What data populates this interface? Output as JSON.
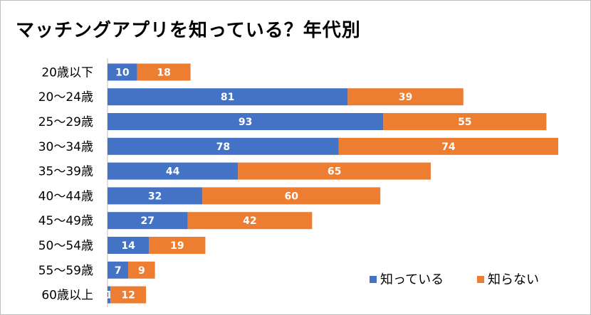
{
  "chart_data": {
    "type": "bar",
    "orientation": "horizontal",
    "stacked": true,
    "title": "マッチングアプリを知っている？年代別",
    "categories": [
      "20歳以下",
      "20～24歳",
      "25～29歳",
      "30～34歳",
      "35～39歳",
      "40～44歳",
      "45～49歳",
      "50～54歳",
      "55～59歳",
      "60歳以上"
    ],
    "series": [
      {
        "name": "知っている",
        "color": "#4472c4",
        "values": [
          10,
          81,
          93,
          78,
          44,
          32,
          27,
          14,
          7,
          1
        ]
      },
      {
        "name": "知らない",
        "color": "#ed7d31",
        "values": [
          18,
          39,
          55,
          74,
          65,
          60,
          42,
          19,
          9,
          12
        ]
      }
    ],
    "xlim": [
      0,
      152
    ],
    "grid": false,
    "legend_position": "bottom-right"
  }
}
